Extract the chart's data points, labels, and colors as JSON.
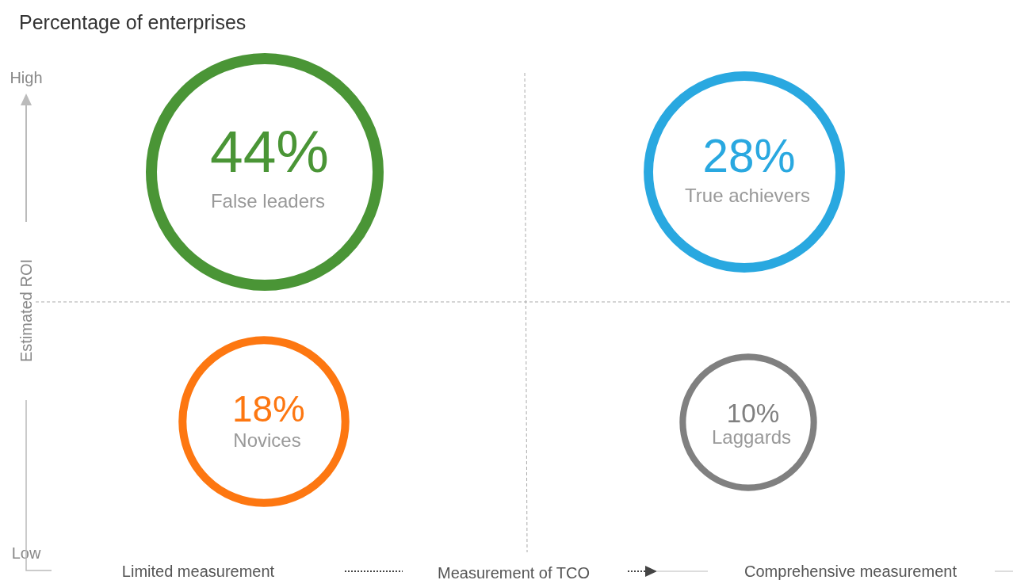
{
  "chart_data": {
    "type": "other",
    "title": "Percentage of enterprises",
    "xlabel": "Measurement of TCO",
    "ylabel": "Estimated ROI",
    "annotations": [
      "High",
      "Low",
      "Limited measurement",
      "Comprehensive measurement"
    ],
    "categories": [
      "False leaders",
      "True achievers",
      "Novices",
      "Laggards"
    ],
    "values": [
      44,
      28,
      18,
      10
    ],
    "value_labels": [
      "44%",
      "28%",
      "18%",
      "10%"
    ],
    "colors": [
      "#4a9536",
      "#29a8e0",
      "#fd7711",
      "#808080"
    ]
  }
}
